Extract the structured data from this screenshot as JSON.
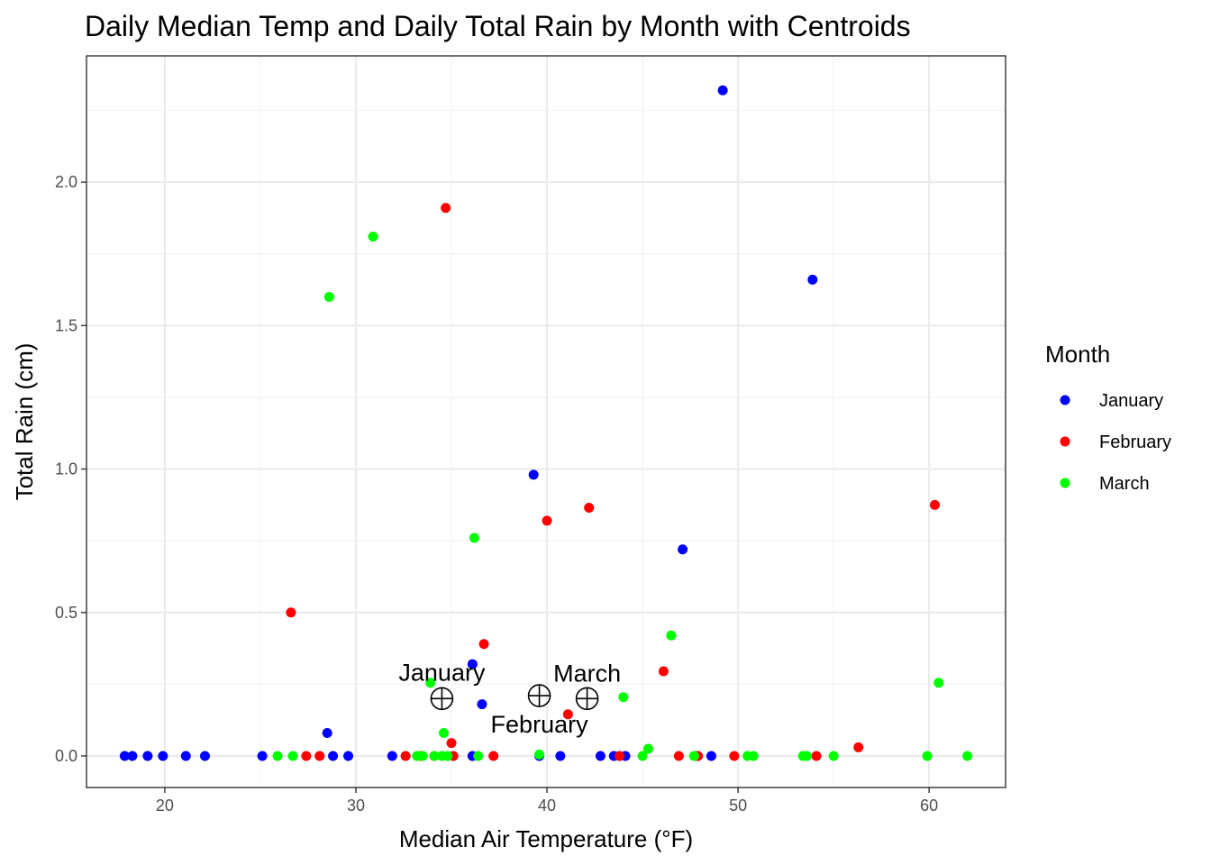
{
  "chart_data": {
    "type": "scatter",
    "title": "Daily Median Temp and Daily Total Rain by Month with Centroids",
    "xlabel": "Median Air Temperature (°F)",
    "ylabel": "Total Rain (cm)",
    "xlim": [
      15.9,
      64.0
    ],
    "ylim": [
      -0.11,
      2.44
    ],
    "x_ticks": [
      20,
      30,
      40,
      50,
      60
    ],
    "x_tick_labels": [
      "20",
      "30",
      "40",
      "50",
      "60"
    ],
    "y_ticks": [
      0.0,
      0.5,
      1.0,
      1.5,
      2.0
    ],
    "y_tick_labels": [
      "0.0",
      "0.5",
      "1.0",
      "1.5",
      "2.0"
    ],
    "grid": true,
    "legend": {
      "title": "Month",
      "position": "right"
    },
    "series": [
      {
        "name": "January",
        "color": "#0000ff",
        "points": [
          [
            17.9,
            0
          ],
          [
            18.3,
            0
          ],
          [
            19.1,
            0
          ],
          [
            19.9,
            0
          ],
          [
            21.1,
            0
          ],
          [
            22.1,
            0
          ],
          [
            25.1,
            0
          ],
          [
            28.8,
            0
          ],
          [
            29.6,
            0
          ],
          [
            31.9,
            0
          ],
          [
            36.1,
            0
          ],
          [
            39.6,
            0
          ],
          [
            40.7,
            0
          ],
          [
            42.8,
            0
          ],
          [
            43.5,
            0
          ],
          [
            44.1,
            0
          ],
          [
            47.8,
            0
          ],
          [
            48.6,
            0
          ],
          [
            28.5,
            0.08
          ],
          [
            36.1,
            0.32
          ],
          [
            36.6,
            0.18
          ],
          [
            39.3,
            0.98
          ],
          [
            47.1,
            0.72
          ],
          [
            49.2,
            2.32
          ],
          [
            53.9,
            1.66
          ]
        ]
      },
      {
        "name": "February",
        "color": "#ff0000",
        "points": [
          [
            27.4,
            0
          ],
          [
            28.1,
            0
          ],
          [
            32.6,
            0
          ],
          [
            33.4,
            0
          ],
          [
            34.1,
            0
          ],
          [
            35.1,
            0
          ],
          [
            37.2,
            0
          ],
          [
            43.8,
            0
          ],
          [
            46.9,
            0
          ],
          [
            47.9,
            0
          ],
          [
            49.8,
            0
          ],
          [
            54.1,
            0
          ],
          [
            26.6,
            0.5
          ],
          [
            34.7,
            1.91
          ],
          [
            35.0,
            0.045
          ],
          [
            36.7,
            0.39
          ],
          [
            40.0,
            0.82
          ],
          [
            41.1,
            0.145
          ],
          [
            42.2,
            0.865
          ],
          [
            46.1,
            0.295
          ],
          [
            56.3,
            0.03
          ],
          [
            60.3,
            0.875
          ]
        ]
      },
      {
        "name": "March",
        "color": "#00ff00",
        "points": [
          [
            25.9,
            0
          ],
          [
            26.7,
            0
          ],
          [
            33.2,
            0
          ],
          [
            33.5,
            0
          ],
          [
            34.1,
            0
          ],
          [
            34.5,
            0
          ],
          [
            34.8,
            0
          ],
          [
            36.4,
            0
          ],
          [
            39.6,
            0.005
          ],
          [
            45.0,
            0
          ],
          [
            47.7,
            0
          ],
          [
            50.5,
            0
          ],
          [
            50.8,
            0
          ],
          [
            53.4,
            0
          ],
          [
            53.6,
            0
          ],
          [
            55.0,
            0
          ],
          [
            59.9,
            0
          ],
          [
            62.0,
            0
          ],
          [
            28.6,
            1.6
          ],
          [
            30.9,
            1.81
          ],
          [
            33.9,
            0.255
          ],
          [
            34.6,
            0.08
          ],
          [
            36.2,
            0.76
          ],
          [
            44.0,
            0.205
          ],
          [
            45.3,
            0.025
          ],
          [
            46.5,
            0.42
          ],
          [
            60.5,
            0.255
          ]
        ]
      }
    ],
    "centroids": [
      {
        "label": "January",
        "x": 34.5,
        "y": 0.2
      },
      {
        "label": "February",
        "x": 39.6,
        "y": 0.21
      },
      {
        "label": "March",
        "x": 42.1,
        "y": 0.2
      }
    ]
  }
}
